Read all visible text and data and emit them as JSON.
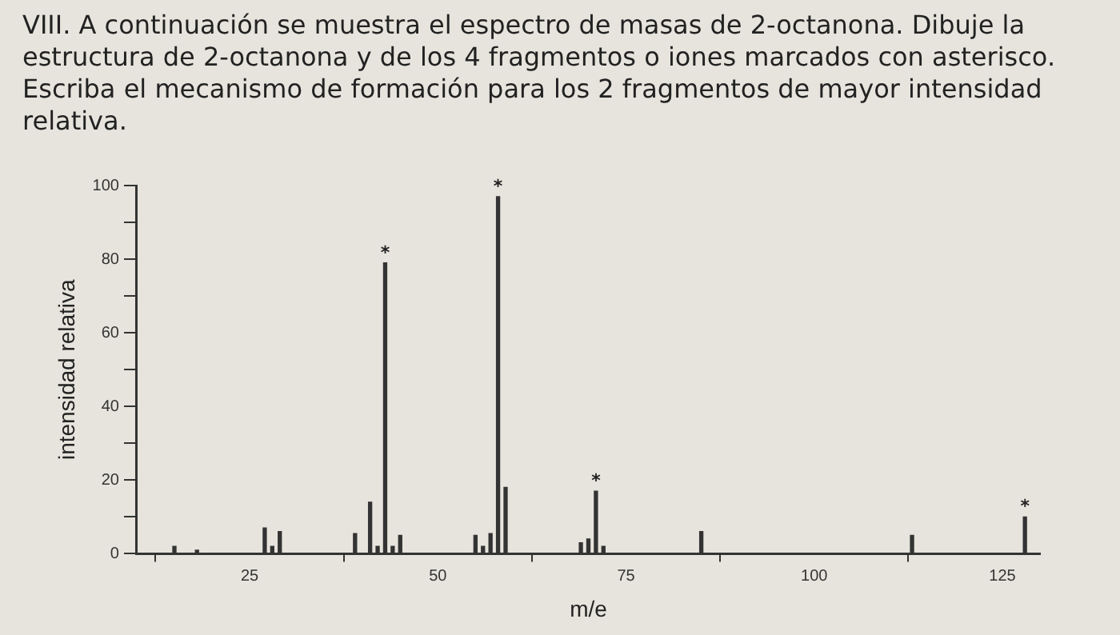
{
  "chart_data": {
    "type": "bar",
    "title": "VIII. A continuación se muestra el espectro de masas de 2-octanona. Dibuje la estructura de 2-octanona y de los 4 fragmentos o iones marcados con asterisco. Escriba el mecanismo de formación para los 2 fragmentos de mayor intensidad relativa.",
    "xlabel": "m/e",
    "ylabel": "intensidad relativa",
    "x": [
      15,
      18,
      27,
      28,
      29,
      39,
      41,
      42,
      43,
      44,
      45,
      55,
      56,
      57,
      58,
      59,
      69,
      70,
      71,
      72,
      85,
      113,
      128
    ],
    "values": [
      2,
      1,
      7,
      2,
      6,
      5.5,
      14,
      2,
      79,
      2,
      5,
      5,
      2,
      5.5,
      97,
      18,
      3,
      4,
      17,
      2,
      6,
      5,
      10
    ],
    "color": "#333333",
    "xlim": [
      10,
      130
    ],
    "xticks": [
      25,
      50,
      75,
      100,
      125
    ],
    "ylim": [
      0,
      100
    ],
    "yticks": [
      0,
      {
        "value": 10,
        "label": null
      },
      20,
      {
        "value": 30,
        "label": null
      },
      40,
      {
        "value": 50,
        "label": null
      },
      60,
      {
        "value": 70,
        "label": null
      },
      80,
      {
        "value": 90,
        "label": null
      },
      100
    ],
    "annotations": [
      {
        "text": "*",
        "x": 43,
        "y": 79
      },
      {
        "text": "*",
        "x": 58,
        "y": 97
      },
      {
        "text": "*",
        "x": 71,
        "y": 17
      },
      {
        "text": "*",
        "x": 128,
        "y": 10
      }
    ],
    "grid": false,
    "legend": false
  }
}
